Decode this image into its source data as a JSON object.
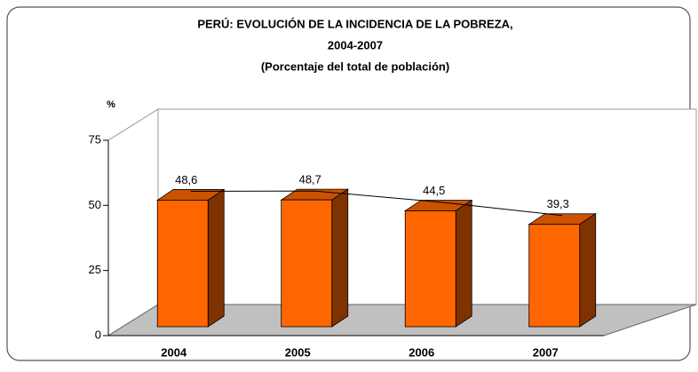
{
  "chart_data": {
    "type": "bar3d",
    "title": [
      "PERÚ: EVOLUCIÓN DE LA INCIDENCIA DE LA POBREZA,",
      "2004-2007"
    ],
    "subtitle": "(Porcentaje del total de población)",
    "y_axis_label": "%",
    "categories": [
      "2004",
      "2005",
      "2006",
      "2007"
    ],
    "values": [
      48.6,
      48.7,
      44.5,
      39.3
    ],
    "value_labels": [
      "48,6",
      "48,7",
      "44,5",
      "39,3"
    ],
    "color": "#ff6600",
    "trend_line": true,
    "ylim": [
      0,
      75
    ],
    "yticks": [
      0,
      25,
      50,
      75
    ]
  }
}
